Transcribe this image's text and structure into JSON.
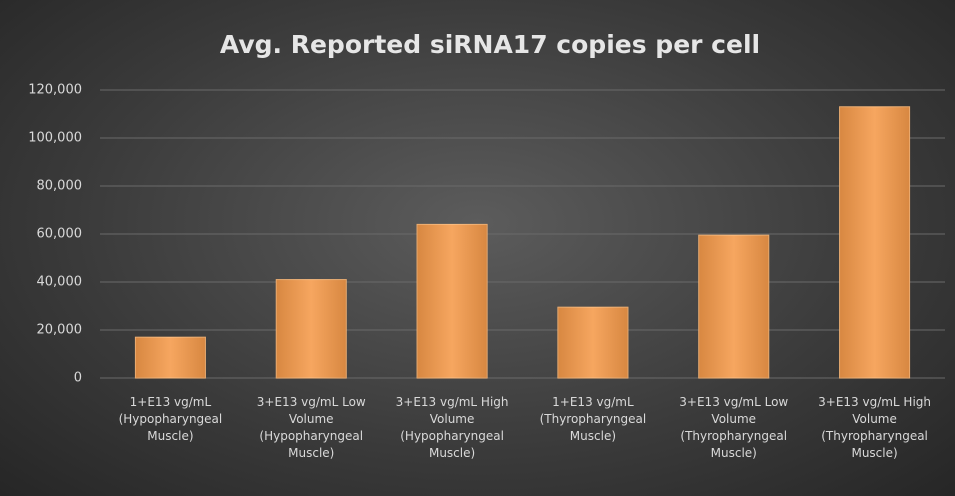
{
  "chart_data": {
    "type": "bar",
    "title": "Avg. Reported  siRNA17  copies  per  cell",
    "categories": [
      "1+E13 vg/mL (Hypopharyngeal Muscle)",
      "3+E13 vg/mL Low Volume (Hypopharyngeal Muscle)",
      "3+E13 vg/mL High Volume (Hypopharyngeal Muscle)",
      "1+E13 vg/mL (Thyropharyngeal Muscle)",
      "3+E13 vg/mL Low Volume (Thyropharyngeal Muscle)",
      "3+E13 vg/mL High Volume (Thyropharyngeal Muscle)"
    ],
    "values": [
      17000,
      41000,
      64000,
      29500,
      59500,
      113000
    ],
    "color": "#f59a4a",
    "ylim": [
      0,
      120000
    ],
    "yticks": [
      0,
      {
        "value": 20000,
        "label": "20,000"
      },
      {
        "value": 40000,
        "label": "40,000"
      },
      {
        "value": 60000,
        "label": "60,000"
      },
      {
        "value": 80000,
        "label": "80,000"
      },
      {
        "value": 100000,
        "label": "100,000"
      },
      {
        "value": 120000,
        "label": "120,000"
      }
    ],
    "grid": true
  }
}
